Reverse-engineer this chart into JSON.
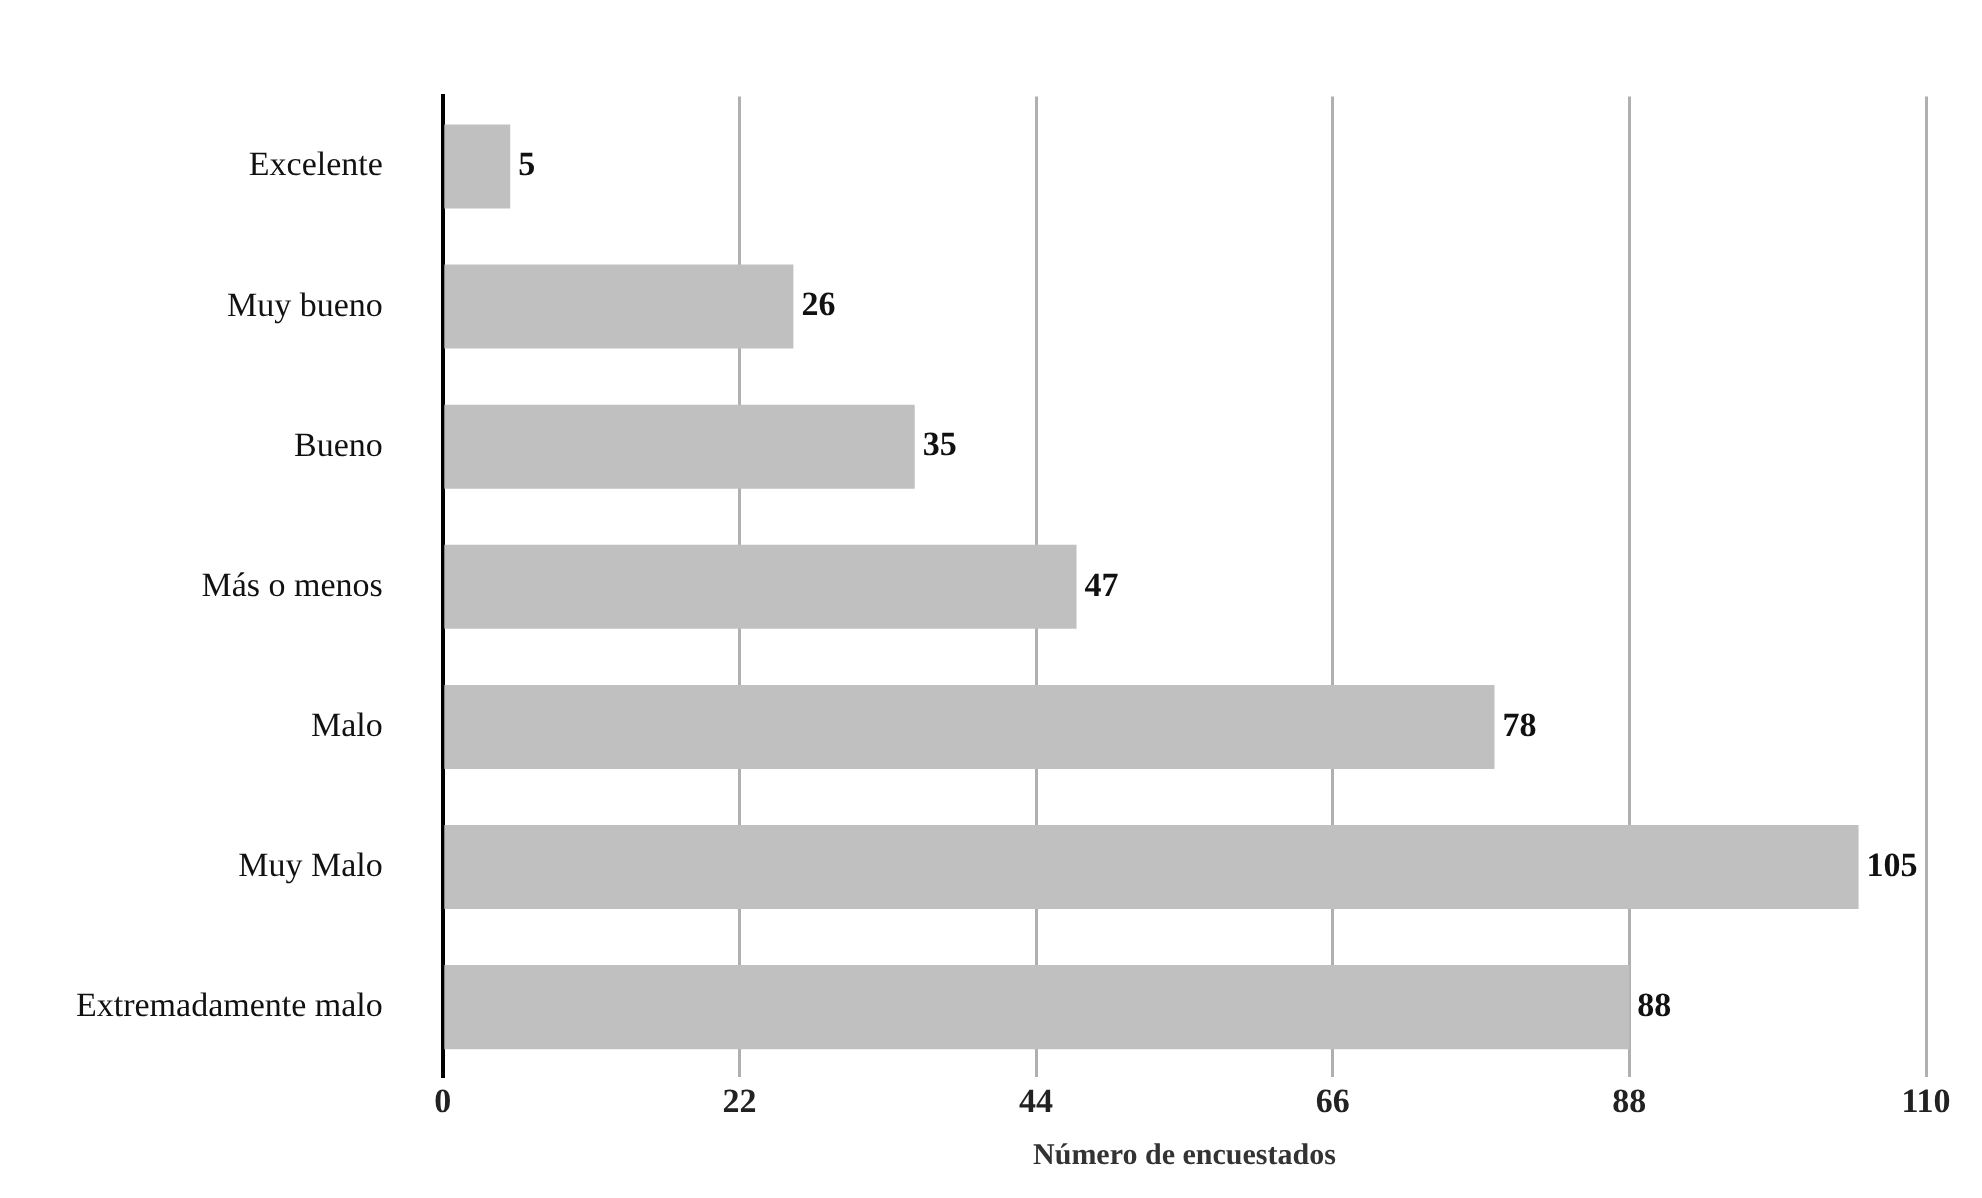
{
  "chart_data": {
    "type": "bar",
    "orientation": "horizontal",
    "xlabel": "Número de encuestados",
    "categories": [
      "Excelente",
      "Muy bueno",
      "Bueno",
      "Más o menos",
      "Malo",
      "Muy Malo",
      "Extremadamente malo"
    ],
    "values": [
      5,
      26,
      35,
      47,
      78,
      105,
      88
    ],
    "color": "#c0c0c0",
    "xlim": [
      0,
      110
    ],
    "xticks": [
      0,
      22,
      44,
      66,
      88,
      110
    ],
    "grid": "x",
    "data_labels": true
  }
}
